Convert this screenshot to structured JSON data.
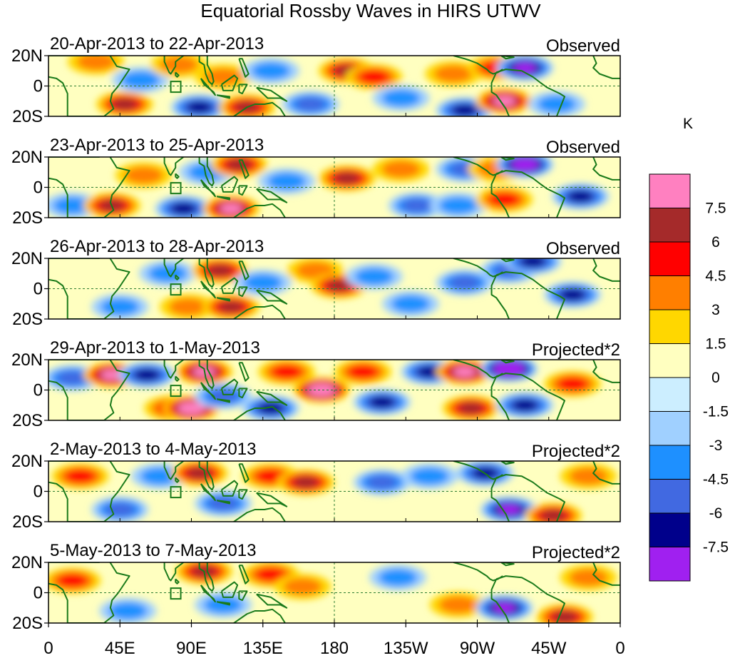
{
  "title": "Equatorial Rossby Waves in HIRS UTWV",
  "colorbar": {
    "unit": "K",
    "labels": [
      "7.5",
      "6",
      "4.5",
      "3",
      "1.5",
      "0",
      "-1.5",
      "-3",
      "-4.5",
      "-6",
      "-7.5"
    ],
    "colors": [
      "#ff80c0",
      "#a52a2a",
      "#ff0000",
      "#ff7f00",
      "#ffd700",
      "#ffffc0",
      "#cceeff",
      "#a0d0ff",
      "#1e90ff",
      "#4169e1",
      "#00008b",
      "#a020f0"
    ]
  },
  "coast_color": "#1a7a1a",
  "y_ticks": [
    "20N",
    "0",
    "20S"
  ],
  "x_ticks": [
    "0",
    "45E",
    "90E",
    "135E",
    "180",
    "135W",
    "90W",
    "45W",
    "0"
  ],
  "panels": [
    {
      "date": "20-Apr-2013 to 22-Apr-2013",
      "type": "Observed"
    },
    {
      "date": "23-Apr-2013 to 25-Apr-2013",
      "type": "Observed"
    },
    {
      "date": "26-Apr-2013 to 28-Apr-2013",
      "type": "Observed"
    },
    {
      "date": "29-Apr-2013 to 1-May-2013",
      "type": "Projected*2"
    },
    {
      "date": "2-May-2013 to 4-May-2013",
      "type": "Projected*2"
    },
    {
      "date": "5-May-2013 to 7-May-2013",
      "type": "Projected*2"
    }
  ],
  "anomaly_blobs": [
    [
      {
        "lon": 30,
        "lat": 16,
        "v": 2
      },
      {
        "lon": 48,
        "lat": -12,
        "v": 4
      },
      {
        "lon": 58,
        "lat": 4,
        "v": -2
      },
      {
        "lon": 82,
        "lat": 14,
        "v": 2
      },
      {
        "lon": 95,
        "lat": -14,
        "v": -4
      },
      {
        "lon": 110,
        "lat": 6,
        "v": 2
      },
      {
        "lon": 125,
        "lat": -14,
        "v": 4
      },
      {
        "lon": 140,
        "lat": 10,
        "v": -2
      },
      {
        "lon": 165,
        "lat": -12,
        "v": -3
      },
      {
        "lon": 188,
        "lat": 10,
        "v": 4
      },
      {
        "lon": 205,
        "lat": 6,
        "v": 3
      },
      {
        "lon": 222,
        "lat": -8,
        "v": -2
      },
      {
        "lon": 255,
        "lat": 8,
        "v": 2
      },
      {
        "lon": 262,
        "lat": -16,
        "v": -4
      },
      {
        "lon": 282,
        "lat": 12,
        "v": 3
      },
      {
        "lon": 287,
        "lat": -10,
        "v": 5
      },
      {
        "lon": 300,
        "lat": 12,
        "v": -5
      },
      {
        "lon": 320,
        "lat": -12,
        "v": -2
      }
    ],
    [
      {
        "lon": 15,
        "lat": -12,
        "v": -2
      },
      {
        "lon": 40,
        "lat": -12,
        "v": 4
      },
      {
        "lon": 60,
        "lat": 8,
        "v": 2
      },
      {
        "lon": 85,
        "lat": -14,
        "v": -4
      },
      {
        "lon": 100,
        "lat": 10,
        "v": -2
      },
      {
        "lon": 120,
        "lat": 15,
        "v": 4
      },
      {
        "lon": 115,
        "lat": -14,
        "v": 5
      },
      {
        "lon": 150,
        "lat": 4,
        "v": -2
      },
      {
        "lon": 188,
        "lat": 6,
        "v": 4
      },
      {
        "lon": 222,
        "lat": 12,
        "v": 2
      },
      {
        "lon": 232,
        "lat": -12,
        "v": -3
      },
      {
        "lon": 258,
        "lat": -12,
        "v": -2
      },
      {
        "lon": 262,
        "lat": 12,
        "v": -3
      },
      {
        "lon": 282,
        "lat": 12,
        "v": 2
      },
      {
        "lon": 287,
        "lat": -8,
        "v": 3
      },
      {
        "lon": 300,
        "lat": 15,
        "v": -6
      },
      {
        "lon": 335,
        "lat": -6,
        "v": -4
      }
    ],
    [
      {
        "lon": 45,
        "lat": -12,
        "v": -2
      },
      {
        "lon": 75,
        "lat": 10,
        "v": -2
      },
      {
        "lon": 88,
        "lat": -12,
        "v": 2
      },
      {
        "lon": 108,
        "lat": 12,
        "v": 4
      },
      {
        "lon": 115,
        "lat": -12,
        "v": 4
      },
      {
        "lon": 135,
        "lat": 4,
        "v": -2
      },
      {
        "lon": 168,
        "lat": 12,
        "v": 2
      },
      {
        "lon": 183,
        "lat": 2,
        "v": 4
      },
      {
        "lon": 205,
        "lat": 8,
        "v": -2
      },
      {
        "lon": 228,
        "lat": -10,
        "v": -2
      },
      {
        "lon": 262,
        "lat": 4,
        "v": -3
      },
      {
        "lon": 290,
        "lat": 12,
        "v": -3
      },
      {
        "lon": 305,
        "lat": 18,
        "v": -4
      },
      {
        "lon": 330,
        "lat": -4,
        "v": -4
      }
    ],
    [
      {
        "lon": 15,
        "lat": 8,
        "v": -3
      },
      {
        "lon": 40,
        "lat": 10,
        "v": 5
      },
      {
        "lon": 62,
        "lat": 10,
        "v": -4
      },
      {
        "lon": 78,
        "lat": -12,
        "v": 3
      },
      {
        "lon": 98,
        "lat": 12,
        "v": 5
      },
      {
        "lon": 90,
        "lat": -12,
        "v": 6
      },
      {
        "lon": 110,
        "lat": -4,
        "v": -3
      },
      {
        "lon": 140,
        "lat": -12,
        "v": -4
      },
      {
        "lon": 150,
        "lat": 12,
        "v": 3
      },
      {
        "lon": 172,
        "lat": 0,
        "v": 6
      },
      {
        "lon": 198,
        "lat": 12,
        "v": 3
      },
      {
        "lon": 210,
        "lat": -8,
        "v": -4
      },
      {
        "lon": 240,
        "lat": 12,
        "v": -4
      },
      {
        "lon": 262,
        "lat": 12,
        "v": 5
      },
      {
        "lon": 266,
        "lat": -12,
        "v": 4
      },
      {
        "lon": 290,
        "lat": 14,
        "v": -7
      },
      {
        "lon": 300,
        "lat": -10,
        "v": -4
      },
      {
        "lon": 330,
        "lat": 4,
        "v": 3
      }
    ],
    [
      {
        "lon": 20,
        "lat": 10,
        "v": 3
      },
      {
        "lon": 45,
        "lat": -12,
        "v": -3
      },
      {
        "lon": 70,
        "lat": 10,
        "v": -2
      },
      {
        "lon": 95,
        "lat": 12,
        "v": 4
      },
      {
        "lon": 110,
        "lat": -8,
        "v": -3
      },
      {
        "lon": 140,
        "lat": 10,
        "v": 3
      },
      {
        "lon": 162,
        "lat": 6,
        "v": 4
      },
      {
        "lon": 210,
        "lat": 6,
        "v": -3
      },
      {
        "lon": 240,
        "lat": 10,
        "v": -2
      },
      {
        "lon": 275,
        "lat": 12,
        "v": -4
      },
      {
        "lon": 290,
        "lat": -12,
        "v": -5
      },
      {
        "lon": 318,
        "lat": -16,
        "v": 4
      },
      {
        "lon": 340,
        "lat": 10,
        "v": 2
      }
    ],
    [
      {
        "lon": 15,
        "lat": 8,
        "v": 3
      },
      {
        "lon": 50,
        "lat": -12,
        "v": -2
      },
      {
        "lon": 98,
        "lat": 14,
        "v": 4
      },
      {
        "lon": 110,
        "lat": -8,
        "v": -2
      },
      {
        "lon": 140,
        "lat": 12,
        "v": 3
      },
      {
        "lon": 160,
        "lat": 4,
        "v": 2
      },
      {
        "lon": 220,
        "lat": 10,
        "v": -2
      },
      {
        "lon": 258,
        "lat": -8,
        "v": 2
      },
      {
        "lon": 287,
        "lat": -10,
        "v": -5
      },
      {
        "lon": 325,
        "lat": -16,
        "v": 4
      },
      {
        "lon": 340,
        "lat": 10,
        "v": 2
      }
    ]
  ]
}
